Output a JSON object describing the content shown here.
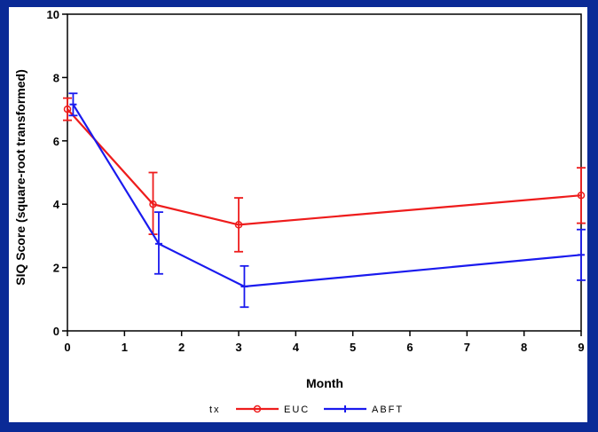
{
  "chart_data": {
    "type": "line",
    "xlabel": "Month",
    "ylabel": "SIQ Score (square-root transformed)",
    "xlim": [
      0,
      9
    ],
    "ylim": [
      0,
      10
    ],
    "xticks": [
      0,
      1,
      2,
      3,
      4,
      5,
      6,
      7,
      8,
      9
    ],
    "yticks": [
      0,
      2,
      4,
      6,
      8,
      10
    ],
    "legend": {
      "title": "tx",
      "placement": "bottom"
    },
    "series": [
      {
        "name": "EUC",
        "color": "#ee1c1c",
        "x": [
          0,
          1.5,
          3,
          9
        ],
        "y": [
          7.0,
          4.0,
          3.35,
          4.28
        ],
        "err_low": [
          6.65,
          3.05,
          2.5,
          3.4
        ],
        "err_high": [
          7.35,
          5.0,
          4.2,
          5.15
        ]
      },
      {
        "name": "ABFT",
        "color": "#1a1aee",
        "x": [
          0.1,
          1.6,
          3.1,
          9
        ],
        "y": [
          7.15,
          2.75,
          1.4,
          2.4
        ],
        "err_low": [
          6.8,
          1.8,
          0.75,
          1.6
        ],
        "err_high": [
          7.5,
          3.75,
          2.05,
          3.2
        ]
      }
    ]
  }
}
